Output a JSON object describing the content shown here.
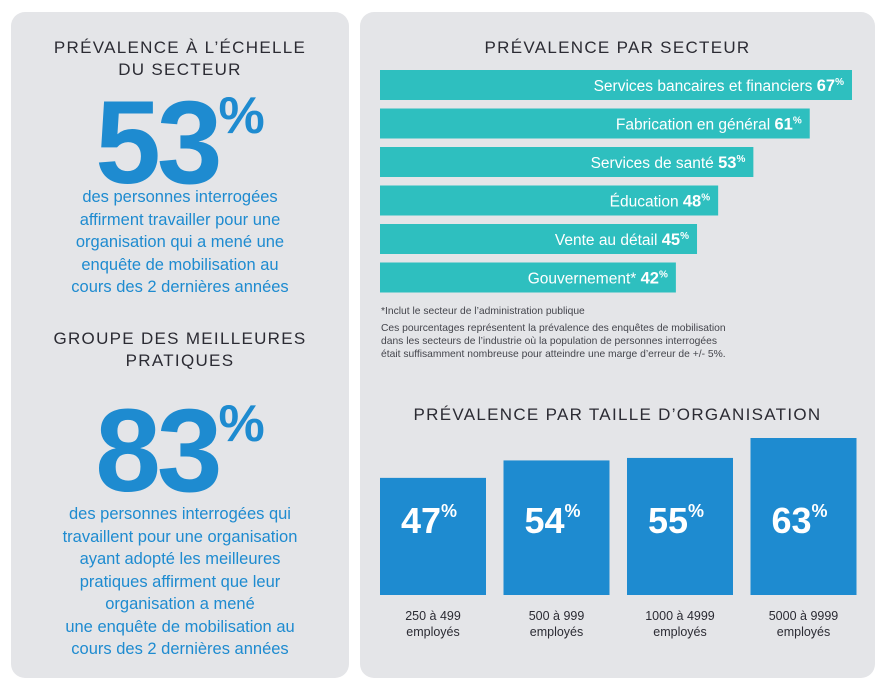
{
  "left": {
    "heading1_line1": "PRÉVALENCE À L’ÉCHELLE",
    "heading1_line2": "DU SECTEUR",
    "stat1_number": "53",
    "stat1_pct": "%",
    "stat1_caption": [
      "des personnes interrogées",
      "affirment travailler pour une",
      "organisation qui a mené une",
      "enquête de mobilisation au",
      "cours des 2 dernières années"
    ],
    "heading2_line1": "GROUPE DES MEILLEURES",
    "heading2_line2": "PRATIQUES",
    "stat2_number": "83",
    "stat2_pct": "%",
    "stat2_caption": [
      "des personnes interrogées qui",
      "travaillent pour une organisation",
      "ayant adopté les meilleures",
      "pratiques affirment que leur",
      "organisation a mené",
      "une enquête de mobilisation au",
      "cours des 2 dernières années"
    ]
  },
  "right": {
    "sector_title": "PRÉVALENCE PAR SECTEUR",
    "footnote1": "*Inclut le secteur de l’administration publique",
    "footnote2": [
      "Ces pourcentages représentent la prévalence des enquêtes de mobilisation",
      "dans les secteurs de l’industrie où la population de personnes interrogées",
      "était suffisamment nombreuse pour atteindre une marge d’erreur de +/- 5%."
    ],
    "size_title": "PRÉVALENCE PAR TAILLE D’ORGANISATION"
  },
  "colors": {
    "blue": "#1e8bd0",
    "teal": "#2ebfbf",
    "panel": "#e4e5e8",
    "text": "#2b2b33"
  },
  "chart_data": [
    {
      "type": "bar",
      "orientation": "horizontal",
      "title": "PRÉVALENCE PAR SECTEUR",
      "categories": [
        "Services bancaires et financiers",
        "Fabrication en général",
        "Services de santé",
        "Éducation",
        "Vente au détail",
        "Gouvernement*"
      ],
      "values": [
        67,
        61,
        53,
        48,
        45,
        42
      ],
      "unit": "%"
    },
    {
      "type": "bar",
      "orientation": "vertical",
      "title": "PRÉVALENCE PAR TAILLE D’ORGANISATION",
      "categories": [
        [
          "250 à 499",
          "employés"
        ],
        [
          "500 à 999",
          "employés"
        ],
        [
          "1000 à 4999",
          "employés"
        ],
        [
          "5000 à 9999",
          "employés"
        ]
      ],
      "values": [
        47,
        54,
        55,
        63
      ],
      "unit": "%"
    }
  ]
}
